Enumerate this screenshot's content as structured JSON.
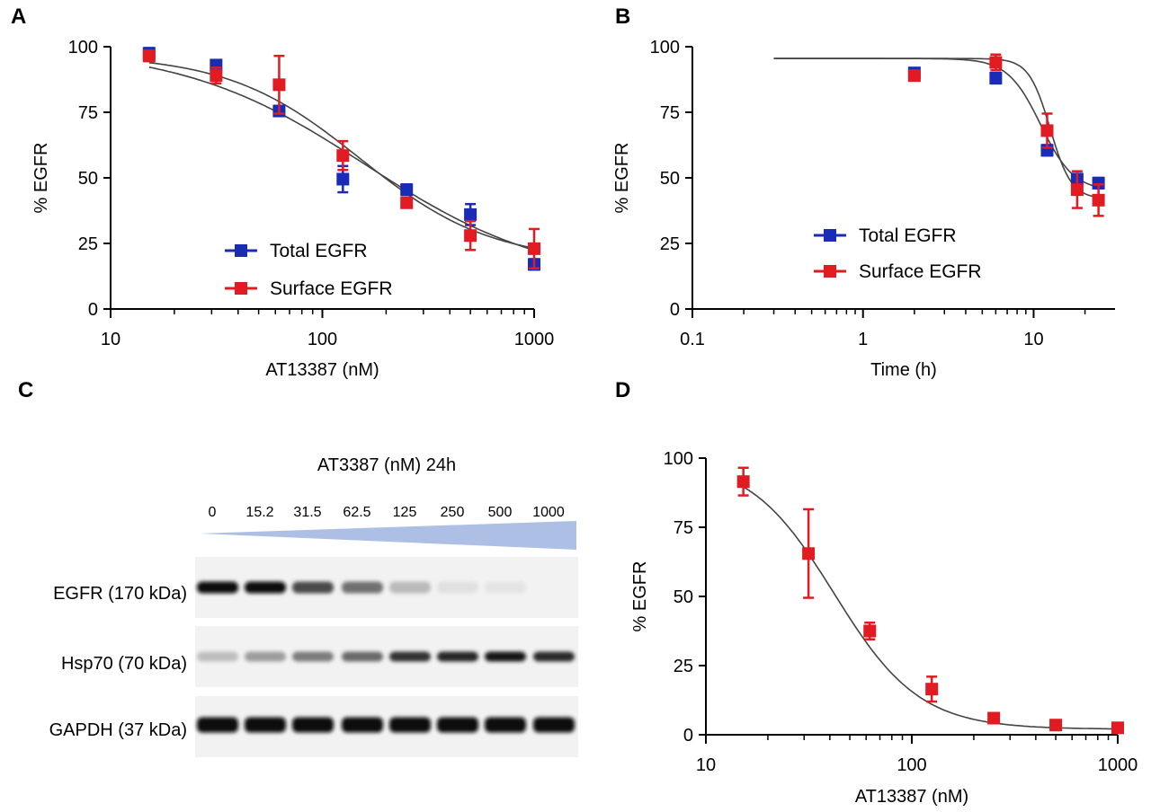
{
  "panels": {
    "A": "A",
    "B": "B",
    "C": "C",
    "D": "D"
  },
  "colors": {
    "blue": "#1a2bb5",
    "red": "#e11b22",
    "fit": "#333333",
    "gel_wedge": "#aebfe6"
  },
  "chart_data": [
    {
      "panel": "A",
      "type": "scatter",
      "title": "",
      "xlabel": "AT13387 (nM)",
      "ylabel": "% EGFR",
      "xscale": "log",
      "xlim": [
        10,
        1000
      ],
      "ylim": [
        0,
        100
      ],
      "xticks": [
        10,
        100,
        1000
      ],
      "xtick_labels": [
        "10",
        "100",
        "1000"
      ],
      "yticks": [
        0,
        25,
        50,
        75,
        100
      ],
      "ytick_labels": [
        "0",
        "25",
        "50",
        "75",
        "100"
      ],
      "legend_position": "bottom-center",
      "grid": false,
      "series": [
        {
          "name": "Total EGFR",
          "color": "#1a2bb5",
          "points": [
            {
              "x": 15.2,
              "y": 97.5,
              "err": 2
            },
            {
              "x": 31.5,
              "y": 93,
              "err": 1.5
            },
            {
              "x": 62.5,
              "y": 75.5,
              "err": 1.5
            },
            {
              "x": 125,
              "y": 49.5,
              "err": 5
            },
            {
              "x": 250,
              "y": 45.5,
              "err": 2
            },
            {
              "x": 500,
              "y": 36,
              "err": 4
            },
            {
              "x": 1000,
              "y": 17,
              "err": 2
            }
          ],
          "fit": {
            "top": 100,
            "bottom": 10,
            "ec50": 160,
            "hill": 1.0
          }
        },
        {
          "name": "Surface EGFR",
          "color": "#e11b22",
          "points": [
            {
              "x": 15.2,
              "y": 96.5,
              "err": 2
            },
            {
              "x": 31.5,
              "y": 89,
              "err": 3
            },
            {
              "x": 62.5,
              "y": 85.5,
              "err": 11
            },
            {
              "x": 125,
              "y": 58.5,
              "err": 5.5
            },
            {
              "x": 250,
              "y": 40.5,
              "err": 1.5
            },
            {
              "x": 500,
              "y": 28,
              "err": 5.5
            },
            {
              "x": 1000,
              "y": 23,
              "err": 7.5
            }
          ],
          "fit": {
            "top": 97,
            "bottom": 18,
            "ec50": 150,
            "hill": 1.4
          }
        }
      ]
    },
    {
      "panel": "B",
      "type": "scatter",
      "title": "",
      "xlabel": "Time (h)",
      "ylabel": "% EGFR",
      "xscale": "log",
      "xlim": [
        0.1,
        30
      ],
      "ylim": [
        0,
        100
      ],
      "xticks": [
        0.1,
        1,
        10
      ],
      "xtick_labels": [
        "0.1",
        "1",
        "10"
      ],
      "yticks": [
        0,
        25,
        50,
        75,
        100
      ],
      "ytick_labels": [
        "0",
        "25",
        "50",
        "75",
        "100"
      ],
      "legend_position": "bottom-center",
      "grid": false,
      "series": [
        {
          "name": "Total EGFR",
          "color": "#1a2bb5",
          "points": [
            {
              "x": 2,
              "y": 90,
              "err": 1
            },
            {
              "x": 6,
              "y": 88,
              "err": 2
            },
            {
              "x": 12,
              "y": 60.5,
              "err": 2
            },
            {
              "x": 18,
              "y": 49.5,
              "err": 2
            },
            {
              "x": 24,
              "y": 48,
              "err": 2
            }
          ],
          "fit": {
            "top": 95.5,
            "bottom": 45,
            "ec50": 11,
            "hill": 4.5,
            "xmin": 0.3,
            "xmax": 24
          }
        },
        {
          "name": "Surface EGFR",
          "color": "#e11b22",
          "points": [
            {
              "x": 2,
              "y": 89,
              "err": 1
            },
            {
              "x": 6,
              "y": 94,
              "err": 3
            },
            {
              "x": 12,
              "y": 68,
              "err": 6.5
            },
            {
              "x": 18,
              "y": 45.5,
              "err": 7
            },
            {
              "x": 24,
              "y": 41.5,
              "err": 6
            }
          ],
          "fit": {
            "top": 95.5,
            "bottom": 42,
            "ec50": 12.5,
            "hill": 7,
            "xmin": 0.3,
            "xmax": 24
          }
        }
      ]
    },
    {
      "panel": "D",
      "type": "scatter",
      "title": "",
      "xlabel": "AT13387 (nM)",
      "ylabel": "% EGFR",
      "xscale": "log",
      "xlim": [
        10,
        1000
      ],
      "ylim": [
        0,
        100
      ],
      "xticks": [
        10,
        100,
        1000
      ],
      "xtick_labels": [
        "10",
        "100",
        "1000"
      ],
      "yticks": [
        0,
        25,
        50,
        75,
        100
      ],
      "ytick_labels": [
        "0",
        "25",
        "50",
        "75",
        "100"
      ],
      "grid": false,
      "series": [
        {
          "color": "#e11b22",
          "points": [
            {
              "x": 15.2,
              "y": 91.5,
              "err": 5
            },
            {
              "x": 31.5,
              "y": 65.5,
              "err": 16
            },
            {
              "x": 62.5,
              "y": 37.5,
              "err": 3
            },
            {
              "x": 125,
              "y": 16.5,
              "err": 4.5
            },
            {
              "x": 250,
              "y": 6,
              "err": 1
            },
            {
              "x": 500,
              "y": 3.5,
              "err": 1
            },
            {
              "x": 1000,
              "y": 2.5,
              "err": 1
            }
          ],
          "fit": {
            "top": 100,
            "bottom": 2,
            "ec50": 42,
            "hill": 2.1
          }
        }
      ]
    }
  ],
  "blot": {
    "title": "AT3387 (nM) 24h",
    "concentrations": [
      "0",
      "15.2",
      "31.5",
      "62.5",
      "125",
      "250",
      "500",
      "1000"
    ],
    "rows": [
      {
        "label": "EGFR (170 kDa)",
        "intensities": [
          1.0,
          0.97,
          0.72,
          0.55,
          0.22,
          0.05,
          0.03,
          0.0
        ]
      },
      {
        "label": "Hsp70 (70 kDa)",
        "intensities": [
          0.2,
          0.35,
          0.5,
          0.58,
          0.82,
          0.88,
          0.95,
          0.85
        ]
      },
      {
        "label": "GAPDH (37 kDa)",
        "intensities": [
          1.0,
          1.0,
          1.0,
          1.0,
          1.0,
          1.0,
          1.0,
          1.0
        ]
      }
    ]
  }
}
